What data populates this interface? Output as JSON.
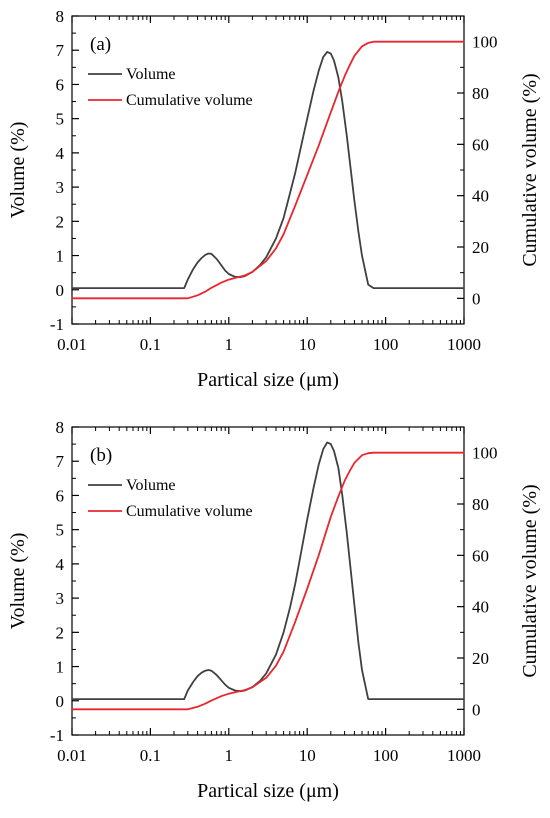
{
  "chart_data": [
    {
      "type": "line",
      "panel_label": "(a)",
      "xlabel": "Partical size (μm)",
      "ylabel": "Volume (%)",
      "ylabel_right": "Cumulative volume (%)",
      "xscale": "log",
      "xlim": [
        0.01,
        1000
      ],
      "ylim": [
        -1,
        8
      ],
      "ylim_right": [
        -10,
        110
      ],
      "x_ticks": [
        0.01,
        0.1,
        1,
        10,
        100,
        1000
      ],
      "x_tick_labels": [
        "0.01",
        "0.1",
        "1",
        "10",
        "100",
        "1000"
      ],
      "y_ticks": [
        -1,
        0,
        1,
        2,
        3,
        4,
        5,
        6,
        7,
        8
      ],
      "y_tick_labels": [
        "-1",
        "0",
        "1",
        "2",
        "3",
        "4",
        "5",
        "6",
        "7",
        "8"
      ],
      "y_right_ticks": [
        0,
        20,
        40,
        60,
        80,
        100
      ],
      "y_right_tick_labels": [
        "0",
        "20",
        "40",
        "60",
        "80",
        "100"
      ],
      "grid": false,
      "legend_position": "top-left",
      "series": [
        {
          "name": "Volume",
          "axis": "left",
          "color": "#404040",
          "x": [
            0.01,
            0.27,
            0.3,
            0.35,
            0.4,
            0.45,
            0.5,
            0.55,
            0.6,
            0.7,
            0.8,
            0.9,
            1.0,
            1.2,
            1.4,
            1.6,
            2,
            2.5,
            3,
            4,
            5,
            6,
            7,
            8,
            10,
            12,
            14,
            16,
            18,
            20,
            22,
            25,
            28,
            32,
            36,
            40,
            45,
            50,
            60,
            70,
            80,
            100,
            1000
          ],
          "y": [
            0.05,
            0.05,
            0.3,
            0.6,
            0.8,
            0.93,
            1.02,
            1.06,
            1.05,
            0.9,
            0.72,
            0.56,
            0.46,
            0.38,
            0.37,
            0.4,
            0.52,
            0.72,
            0.95,
            1.5,
            2.1,
            2.8,
            3.4,
            4.0,
            5.0,
            5.8,
            6.4,
            6.8,
            6.95,
            6.9,
            6.7,
            6.2,
            5.5,
            4.5,
            3.5,
            2.6,
            1.7,
            1.0,
            0.15,
            0.05,
            0.05,
            0.05,
            0.05
          ]
        },
        {
          "name": "Cumulative volume",
          "axis": "right",
          "color": "#e8262e",
          "x": [
            0.01,
            0.3,
            0.4,
            0.5,
            0.6,
            0.8,
            1.0,
            1.3,
            1.6,
            2,
            3,
            4,
            5,
            7,
            10,
            14,
            20,
            25,
            30,
            35,
            40,
            50,
            60,
            70,
            80,
            1000
          ],
          "y": [
            0,
            0,
            1.2,
            2.6,
            4.1,
            6.1,
            7.3,
            8.2,
            8.9,
            10.3,
            14.5,
            19.5,
            25,
            36,
            48,
            59.5,
            72.5,
            80.5,
            86.5,
            91,
            94.5,
            98.2,
            99.5,
            100,
            100,
            100
          ]
        }
      ]
    },
    {
      "type": "line",
      "panel_label": "(b)",
      "xlabel": "Partical size (μm)",
      "ylabel": "Volume (%)",
      "ylabel_right": "Cumulative volume (%)",
      "xscale": "log",
      "xlim": [
        0.01,
        1000
      ],
      "ylim": [
        -1,
        8
      ],
      "ylim_right": [
        -10,
        110
      ],
      "x_ticks": [
        0.01,
        0.1,
        1,
        10,
        100,
        1000
      ],
      "x_tick_labels": [
        "0.01",
        "0.1",
        "1",
        "10",
        "100",
        "1000"
      ],
      "y_ticks": [
        -1,
        0,
        1,
        2,
        3,
        4,
        5,
        6,
        7,
        8
      ],
      "y_tick_labels": [
        "-1",
        "0",
        "1",
        "2",
        "3",
        "4",
        "5",
        "6",
        "7",
        "8"
      ],
      "y_right_ticks": [
        0,
        20,
        40,
        60,
        80,
        100
      ],
      "y_right_tick_labels": [
        "0",
        "20",
        "40",
        "60",
        "80",
        "100"
      ],
      "grid": false,
      "legend_position": "top-left",
      "series": [
        {
          "name": "Volume",
          "axis": "left",
          "color": "#404040",
          "x": [
            0.01,
            0.27,
            0.3,
            0.35,
            0.4,
            0.45,
            0.5,
            0.55,
            0.6,
            0.7,
            0.8,
            0.9,
            1.0,
            1.2,
            1.4,
            1.6,
            2,
            2.5,
            3,
            4,
            5,
            6,
            7,
            8,
            10,
            12,
            14,
            16,
            18,
            20,
            22,
            25,
            28,
            32,
            36,
            40,
            45,
            50,
            60,
            70,
            80,
            100,
            1000
          ],
          "y": [
            0.05,
            0.05,
            0.3,
            0.55,
            0.72,
            0.82,
            0.88,
            0.9,
            0.88,
            0.75,
            0.6,
            0.47,
            0.38,
            0.3,
            0.28,
            0.3,
            0.4,
            0.58,
            0.8,
            1.35,
            2.0,
            2.7,
            3.4,
            4.1,
            5.3,
            6.2,
            6.9,
            7.35,
            7.55,
            7.5,
            7.3,
            6.8,
            6.0,
            4.9,
            3.8,
            2.8,
            1.7,
            0.9,
            0.05,
            0.05,
            0.05,
            0.05,
            0.05
          ]
        },
        {
          "name": "Cumulative volume",
          "axis": "right",
          "color": "#e8262e",
          "x": [
            0.01,
            0.3,
            0.4,
            0.5,
            0.6,
            0.8,
            1.0,
            1.3,
            1.6,
            2,
            3,
            4,
            5,
            7,
            10,
            14,
            20,
            25,
            30,
            35,
            40,
            50,
            60,
            70,
            80,
            1000
          ],
          "y": [
            0,
            0,
            1.0,
            2.2,
            3.4,
            5.1,
            6.1,
            6.9,
            7.5,
            8.6,
            12.3,
            17,
            22.5,
            34,
            47,
            60,
            75,
            83,
            89,
            93,
            96,
            99,
            99.8,
            100,
            100,
            100
          ]
        }
      ]
    }
  ]
}
